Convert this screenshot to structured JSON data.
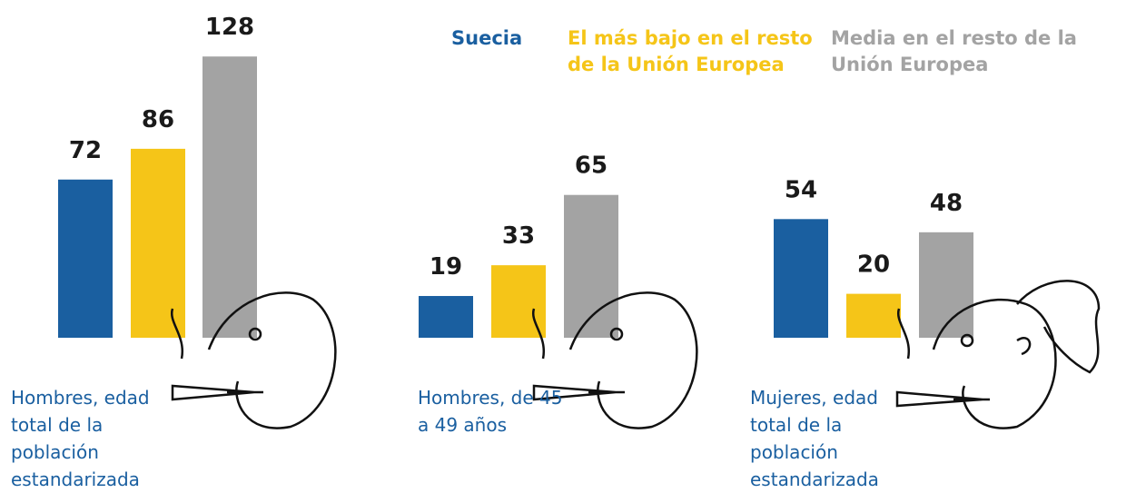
{
  "chart_data": {
    "type": "bar",
    "categories": [
      "Hombres, edad total de la población estandarizada",
      "Hombres, de 45 a 49 años",
      "Mujeres, edad total de la población estandarizada"
    ],
    "series": [
      {
        "name": "Suecia",
        "color": "#1a5fa0",
        "values": [
          72,
          19,
          54
        ]
      },
      {
        "name": "El más bajo en el resto de la Unión Europea",
        "color": "#f5c518",
        "values": [
          86,
          33,
          20
        ]
      },
      {
        "name": "Media en el resto de la Unión Europea",
        "color": "#a3a3a3",
        "values": [
          128,
          65,
          48
        ]
      }
    ]
  }
}
